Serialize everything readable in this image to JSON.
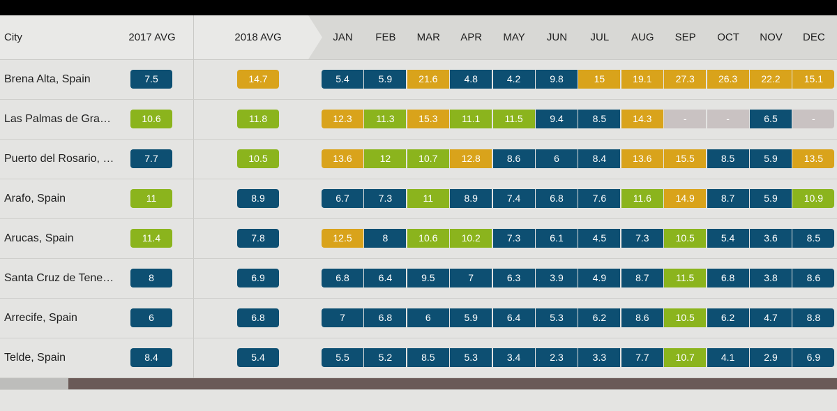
{
  "header": {
    "city": "City",
    "avg2017": "2017 AVG",
    "avg2018": "2018 AVG",
    "months": [
      "JAN",
      "FEB",
      "MAR",
      "APR",
      "MAY",
      "JUN",
      "JUL",
      "AUG",
      "SEP",
      "OCT",
      "NOV",
      "DEC"
    ]
  },
  "colors": {
    "blue": "#0d4f72",
    "green": "#8bb41d",
    "orange": "#d9a31b",
    "gray": "#c9c2c2"
  },
  "rows": [
    {
      "city": "Brena Alta, Spain",
      "avg2017": {
        "v": "7.5",
        "c": "blue"
      },
      "avg2018": {
        "v": "14.7",
        "c": "orange"
      },
      "months": [
        {
          "v": "5.4",
          "c": "blue"
        },
        {
          "v": "5.9",
          "c": "blue"
        },
        {
          "v": "21.6",
          "c": "orange"
        },
        {
          "v": "4.8",
          "c": "blue"
        },
        {
          "v": "4.2",
          "c": "blue"
        },
        {
          "v": "9.8",
          "c": "blue"
        },
        {
          "v": "15",
          "c": "orange"
        },
        {
          "v": "19.1",
          "c": "orange"
        },
        {
          "v": "27.3",
          "c": "orange"
        },
        {
          "v": "26.3",
          "c": "orange"
        },
        {
          "v": "22.2",
          "c": "orange"
        },
        {
          "v": "15.1",
          "c": "orange"
        }
      ]
    },
    {
      "city": "Las Palmas de Gra…",
      "avg2017": {
        "v": "10.6",
        "c": "green"
      },
      "avg2018": {
        "v": "11.8",
        "c": "green"
      },
      "months": [
        {
          "v": "12.3",
          "c": "orange"
        },
        {
          "v": "11.3",
          "c": "green"
        },
        {
          "v": "15.3",
          "c": "orange"
        },
        {
          "v": "11.1",
          "c": "green"
        },
        {
          "v": "11.5",
          "c": "green"
        },
        {
          "v": "9.4",
          "c": "blue"
        },
        {
          "v": "8.5",
          "c": "blue"
        },
        {
          "v": "14.3",
          "c": "orange"
        },
        {
          "v": "-",
          "c": "gray"
        },
        {
          "v": "-",
          "c": "gray"
        },
        {
          "v": "6.5",
          "c": "blue"
        },
        {
          "v": "-",
          "c": "gray"
        }
      ]
    },
    {
      "city": "Puerto del Rosario, …",
      "avg2017": {
        "v": "7.7",
        "c": "blue"
      },
      "avg2018": {
        "v": "10.5",
        "c": "green"
      },
      "months": [
        {
          "v": "13.6",
          "c": "orange"
        },
        {
          "v": "12",
          "c": "green"
        },
        {
          "v": "10.7",
          "c": "green"
        },
        {
          "v": "12.8",
          "c": "orange"
        },
        {
          "v": "8.6",
          "c": "blue"
        },
        {
          "v": "6",
          "c": "blue"
        },
        {
          "v": "8.4",
          "c": "blue"
        },
        {
          "v": "13.6",
          "c": "orange"
        },
        {
          "v": "15.5",
          "c": "orange"
        },
        {
          "v": "8.5",
          "c": "blue"
        },
        {
          "v": "5.9",
          "c": "blue"
        },
        {
          "v": "13.5",
          "c": "orange"
        }
      ]
    },
    {
      "city": "Arafo, Spain",
      "avg2017": {
        "v": "11",
        "c": "green"
      },
      "avg2018": {
        "v": "8.9",
        "c": "blue"
      },
      "months": [
        {
          "v": "6.7",
          "c": "blue"
        },
        {
          "v": "7.3",
          "c": "blue"
        },
        {
          "v": "11",
          "c": "green"
        },
        {
          "v": "8.9",
          "c": "blue"
        },
        {
          "v": "7.4",
          "c": "blue"
        },
        {
          "v": "6.8",
          "c": "blue"
        },
        {
          "v": "7.6",
          "c": "blue"
        },
        {
          "v": "11.6",
          "c": "green"
        },
        {
          "v": "14.9",
          "c": "orange"
        },
        {
          "v": "8.7",
          "c": "blue"
        },
        {
          "v": "5.9",
          "c": "blue"
        },
        {
          "v": "10.9",
          "c": "green"
        }
      ]
    },
    {
      "city": "Arucas, Spain",
      "avg2017": {
        "v": "11.4",
        "c": "green"
      },
      "avg2018": {
        "v": "7.8",
        "c": "blue"
      },
      "months": [
        {
          "v": "12.5",
          "c": "orange"
        },
        {
          "v": "8",
          "c": "blue"
        },
        {
          "v": "10.6",
          "c": "green"
        },
        {
          "v": "10.2",
          "c": "green"
        },
        {
          "v": "7.3",
          "c": "blue"
        },
        {
          "v": "6.1",
          "c": "blue"
        },
        {
          "v": "4.5",
          "c": "blue"
        },
        {
          "v": "7.3",
          "c": "blue"
        },
        {
          "v": "10.5",
          "c": "green"
        },
        {
          "v": "5.4",
          "c": "blue"
        },
        {
          "v": "3.6",
          "c": "blue"
        },
        {
          "v": "8.5",
          "c": "blue"
        }
      ]
    },
    {
      "city": "Santa Cruz de Tene…",
      "avg2017": {
        "v": "8",
        "c": "blue"
      },
      "avg2018": {
        "v": "6.9",
        "c": "blue"
      },
      "months": [
        {
          "v": "6.8",
          "c": "blue"
        },
        {
          "v": "6.4",
          "c": "blue"
        },
        {
          "v": "9.5",
          "c": "blue"
        },
        {
          "v": "7",
          "c": "blue"
        },
        {
          "v": "6.3",
          "c": "blue"
        },
        {
          "v": "3.9",
          "c": "blue"
        },
        {
          "v": "4.9",
          "c": "blue"
        },
        {
          "v": "8.7",
          "c": "blue"
        },
        {
          "v": "11.5",
          "c": "green"
        },
        {
          "v": "6.8",
          "c": "blue"
        },
        {
          "v": "3.8",
          "c": "blue"
        },
        {
          "v": "8.6",
          "c": "blue"
        }
      ]
    },
    {
      "city": "Arrecife, Spain",
      "avg2017": {
        "v": "6",
        "c": "blue"
      },
      "avg2018": {
        "v": "6.8",
        "c": "blue"
      },
      "months": [
        {
          "v": "7",
          "c": "blue"
        },
        {
          "v": "6.8",
          "c": "blue"
        },
        {
          "v": "6",
          "c": "blue"
        },
        {
          "v": "5.9",
          "c": "blue"
        },
        {
          "v": "6.4",
          "c": "blue"
        },
        {
          "v": "5.3",
          "c": "blue"
        },
        {
          "v": "6.2",
          "c": "blue"
        },
        {
          "v": "8.6",
          "c": "blue"
        },
        {
          "v": "10.5",
          "c": "green"
        },
        {
          "v": "6.2",
          "c": "blue"
        },
        {
          "v": "4.7",
          "c": "blue"
        },
        {
          "v": "8.8",
          "c": "blue"
        }
      ]
    },
    {
      "city": "Telde, Spain",
      "avg2017": {
        "v": "8.4",
        "c": "blue"
      },
      "avg2018": {
        "v": "5.4",
        "c": "blue"
      },
      "months": [
        {
          "v": "5.5",
          "c": "blue"
        },
        {
          "v": "5.2",
          "c": "blue"
        },
        {
          "v": "8.5",
          "c": "blue"
        },
        {
          "v": "5.3",
          "c": "blue"
        },
        {
          "v": "3.4",
          "c": "blue"
        },
        {
          "v": "2.3",
          "c": "blue"
        },
        {
          "v": "3.3",
          "c": "blue"
        },
        {
          "v": "7.7",
          "c": "blue"
        },
        {
          "v": "10.7",
          "c": "green"
        },
        {
          "v": "4.1",
          "c": "blue"
        },
        {
          "v": "2.9",
          "c": "blue"
        },
        {
          "v": "6.9",
          "c": "blue"
        }
      ]
    }
  ]
}
